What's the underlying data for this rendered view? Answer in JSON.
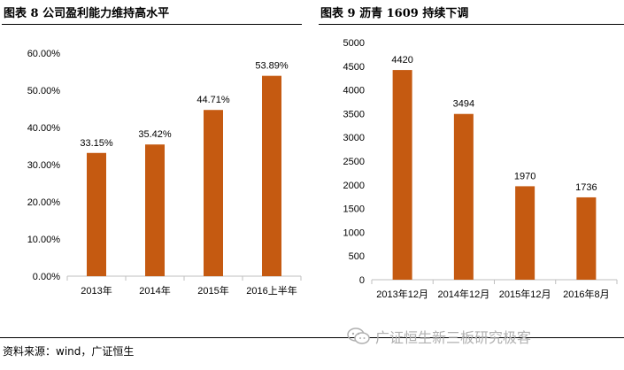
{
  "figure_left": {
    "title": "图表 8 公司盈利能力维持高水平"
  },
  "figure_right": {
    "title": "图表 9 沥青 1609 持续下调"
  },
  "source_text": "资料来源：wind，广证恒生",
  "watermark": {
    "text": "广证恒生新三板研究极客",
    "icon": "wechat-icon"
  },
  "colors": {
    "bar": "#C55A11",
    "axis": "#BFBFBF"
  },
  "chart_data": [
    {
      "type": "bar",
      "categories": [
        "2013年",
        "2014年",
        "2015年",
        "2016上半年"
      ],
      "values": [
        33.15,
        35.42,
        44.71,
        53.89
      ],
      "value_labels": [
        "33.15%",
        "35.42%",
        "44.71%",
        "53.89%"
      ],
      "y_ticks": [
        "0.00%",
        "10.00%",
        "20.00%",
        "30.00%",
        "40.00%",
        "50.00%",
        "60.00%"
      ],
      "ylim": [
        0,
        60
      ],
      "grid": false
    },
    {
      "type": "bar",
      "categories": [
        "2013年12月",
        "2014年12月",
        "2015年12月",
        "2016年8月"
      ],
      "values": [
        4420,
        3494,
        1970,
        1736
      ],
      "value_labels": [
        "4420",
        "3494",
        "1970",
        "1736"
      ],
      "y_ticks": [
        "0",
        "500",
        "1000",
        "1500",
        "2000",
        "2500",
        "3000",
        "3500",
        "4000",
        "4500",
        "5000"
      ],
      "ylim": [
        0,
        5000
      ],
      "grid": false
    }
  ]
}
